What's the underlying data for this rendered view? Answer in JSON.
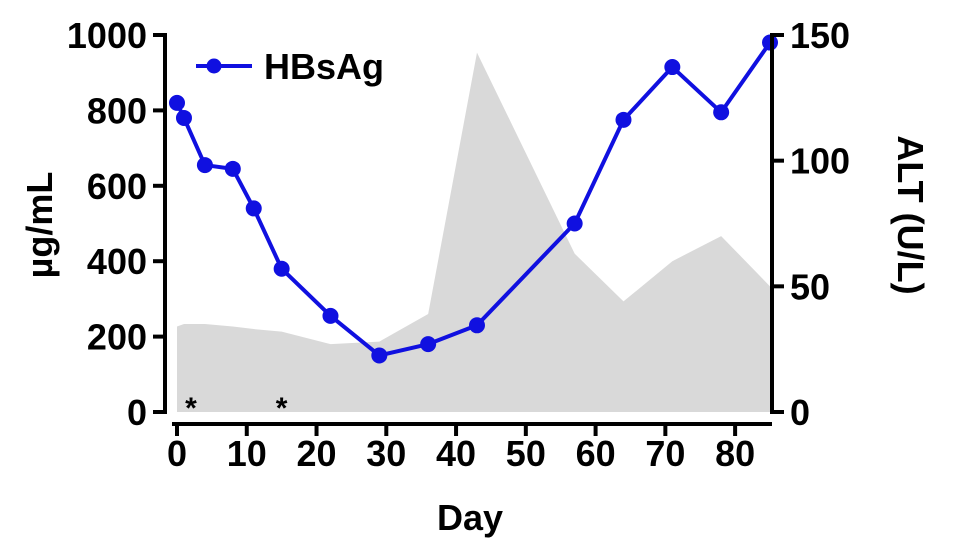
{
  "chart_data": {
    "type": "line",
    "xlabel": "Day",
    "ylabel_left": "µg/mL",
    "ylabel_right": "ALT (U/L)",
    "xlim": [
      0,
      85
    ],
    "ylim_left": [
      0,
      1000
    ],
    "ylim_right": [
      0,
      150
    ],
    "x_ticks": [
      0,
      10,
      20,
      30,
      40,
      50,
      60,
      70,
      80
    ],
    "y_left_ticks": [
      0,
      200,
      400,
      600,
      800,
      1000
    ],
    "y_right_ticks": [
      0,
      50,
      100,
      150
    ],
    "grid": false,
    "legend_position": "top-left",
    "series": [
      {
        "name": "HBsAg",
        "type": "line",
        "axis": "left",
        "color": "#1010e0",
        "x": [
          0,
          1,
          4,
          8,
          11,
          15,
          22,
          29,
          36,
          43,
          57,
          64,
          71,
          78,
          85
        ],
        "y": [
          820,
          780,
          655,
          645,
          540,
          380,
          255,
          150,
          180,
          230,
          500,
          775,
          915,
          795,
          980
        ]
      },
      {
        "type": "area",
        "axis": "right",
        "color": "#d9d9d9",
        "x": [
          0,
          1,
          4,
          8,
          11,
          15,
          22,
          29,
          36,
          43,
          57,
          64,
          71,
          78,
          85
        ],
        "y": [
          34,
          35,
          35,
          34,
          33,
          32,
          27,
          28,
          39,
          143,
          63,
          44,
          60,
          70,
          50
        ]
      }
    ],
    "annotations": [
      {
        "text": "*",
        "x": 2
      },
      {
        "text": "*",
        "x": 15
      }
    ]
  }
}
